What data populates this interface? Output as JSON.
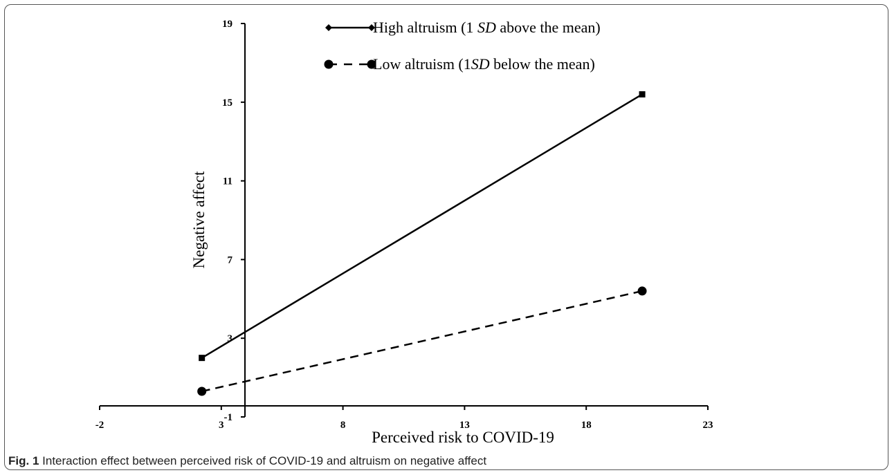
{
  "caption": {
    "label": "Fig. 1",
    "text": "Interaction effect between perceived risk of COVID-19 and altruism on negative affect"
  },
  "chart_data": {
    "type": "line",
    "xlabel": "Perceived risk to COVID-19",
    "ylabel": "Negative affect",
    "xlim": [
      -2,
      23
    ],
    "ylim": [
      -1,
      19
    ],
    "xticks": [
      -2,
      3,
      8,
      13,
      18,
      23
    ],
    "yticks": [
      -1,
      3,
      7,
      11,
      15,
      19
    ],
    "legend_position": "top-center",
    "series": [
      {
        "name_parts": [
          "High altruism (1 ",
          "SD",
          " above the mean)"
        ],
        "style": "solid",
        "marker": "square",
        "legend_marker": "diamond",
        "x": [
          2.2,
          20.3
        ],
        "y": [
          2.0,
          15.4
        ],
        "color": "#000000"
      },
      {
        "name_parts": [
          "Low altruism (1",
          "SD",
          " below the mean)"
        ],
        "style": "dashed",
        "marker": "circle",
        "legend_marker": "circle",
        "x": [
          2.2,
          20.3
        ],
        "y": [
          0.3,
          5.4
        ],
        "color": "#000000"
      }
    ]
  }
}
